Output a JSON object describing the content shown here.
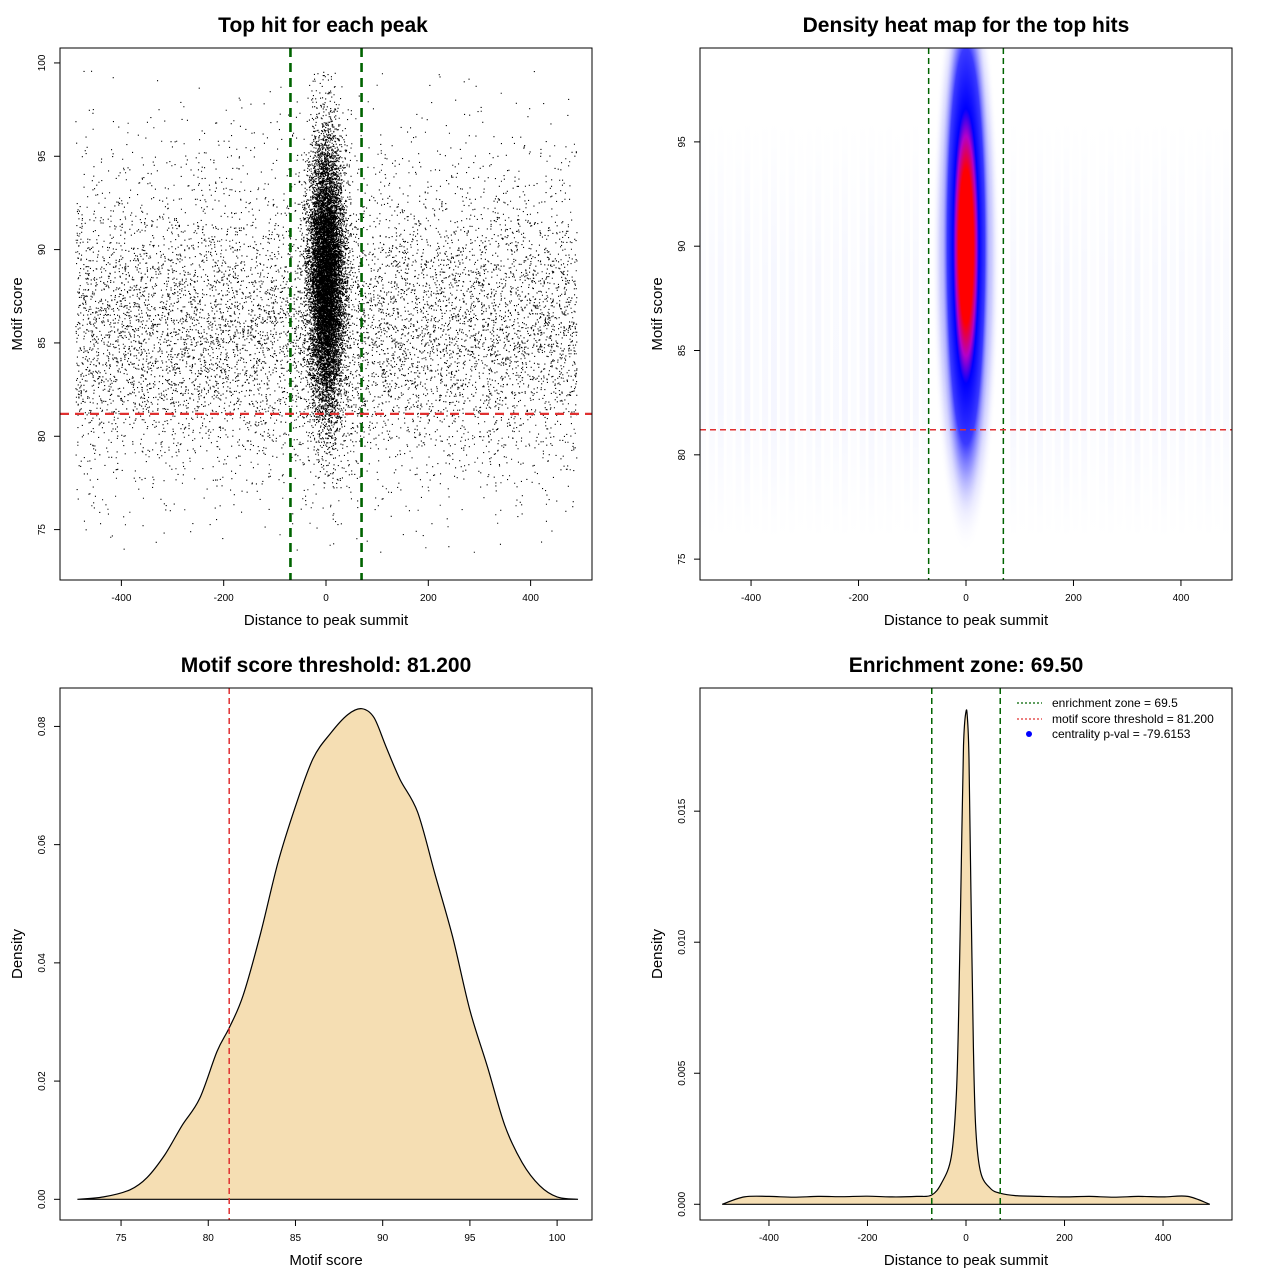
{
  "chart_data": [
    {
      "type": "scatter",
      "title": "Top hit for each peak",
      "xlabel": "Distance to peak summit",
      "ylabel": "Motif score",
      "xlim": [
        -520,
        520
      ],
      "ylim": [
        72.3,
        100.8
      ],
      "xticks": [
        -400,
        -200,
        0,
        200,
        400
      ],
      "yticks": [
        75,
        80,
        85,
        90,
        95,
        100
      ],
      "vlines": [
        -69.5,
        69.5
      ],
      "hline": 81.2,
      "colors": {
        "points": "#000000",
        "vline": "#006400",
        "hline": "#e03030"
      },
      "point_cloud": {
        "x_range": [
          -490,
          490
        ],
        "central_x_sd": 17,
        "score_center": 88.5,
        "score_range": [
          73.8,
          99.6
        ]
      }
    },
    {
      "type": "heatmap",
      "title": "Density heat map for the top hits",
      "xlabel": "Distance to peak summit",
      "ylabel": "Motif score",
      "xlim": [
        -495,
        495
      ],
      "ylim": [
        74,
        99.5
      ],
      "xticks": [
        -400,
        -200,
        0,
        200,
        400
      ],
      "yticks": [
        75,
        80,
        85,
        90,
        95
      ],
      "vlines": [
        -69.5,
        69.5
      ],
      "hline": 81.2,
      "colors": {
        "low": "#ffffff",
        "mid": "#0000ff",
        "high": "#ff0000",
        "vline": "#006400",
        "hline": "#e03030"
      },
      "peak": {
        "x": 0,
        "y": 90
      }
    },
    {
      "type": "area",
      "title": "Motif score threshold: 81.200",
      "xlabel": "Motif score",
      "ylabel": "Density",
      "xlim": [
        71.5,
        102
      ],
      "ylim": [
        -0.0035,
        0.0865
      ],
      "xticks": [
        75,
        80,
        85,
        90,
        95,
        100
      ],
      "yticks": [
        0.0,
        0.02,
        0.04,
        0.06,
        0.08
      ],
      "ytick_labels": [
        "0.00",
        "0.02",
        "0.04",
        "0.06",
        "0.08"
      ],
      "vline": 81.2,
      "colors": {
        "fill": "#f5deb3",
        "line": "#000000",
        "vline": "#e03030"
      },
      "x": [
        72.5,
        74,
        75.5,
        76.5,
        77.5,
        78.5,
        79.5,
        80.5,
        81.2,
        82,
        83,
        84,
        85,
        86,
        87,
        88,
        88.8,
        89.5,
        90.2,
        91,
        92,
        93,
        94,
        95,
        96,
        97,
        98,
        99,
        100,
        101.2
      ],
      "y": [
        0.0,
        0.0004,
        0.0016,
        0.0037,
        0.0075,
        0.0125,
        0.017,
        0.025,
        0.029,
        0.0345,
        0.045,
        0.057,
        0.0665,
        0.0745,
        0.0788,
        0.082,
        0.083,
        0.0815,
        0.0765,
        0.071,
        0.0655,
        0.055,
        0.0445,
        0.032,
        0.0225,
        0.0125,
        0.0062,
        0.0023,
        0.0004,
        0.0
      ]
    },
    {
      "type": "area",
      "title": "Enrichment zone: 69.50",
      "xlabel": "Distance to peak summit",
      "ylabel": "Density",
      "xlim": [
        -540,
        540
      ],
      "ylim": [
        -0.0006,
        0.0197
      ],
      "xticks": [
        -400,
        -200,
        0,
        200,
        400
      ],
      "yticks": [
        0.0,
        0.005,
        0.01,
        0.015
      ],
      "ytick_labels": [
        "0.000",
        "0.005",
        "0.010",
        "0.015"
      ],
      "vlines": [
        -69.5,
        69.5
      ],
      "colors": {
        "fill": "#f5deb3",
        "line": "#000000",
        "vline": "#006400",
        "legend_zone": "#006400",
        "legend_threshold": "#e03030",
        "legend_point": "#0000ff"
      },
      "x": [
        -495,
        -450,
        -400,
        -350,
        -300,
        -250,
        -200,
        -150,
        -100,
        -70,
        -50,
        -30,
        -20,
        -15,
        -10,
        -5,
        0,
        3,
        6,
        10,
        15,
        20,
        30,
        50,
        70,
        100,
        150,
        200,
        250,
        300,
        350,
        400,
        450,
        495
      ],
      "y": [
        0.0,
        0.00028,
        0.0003,
        0.00027,
        0.0003,
        0.00029,
        0.00031,
        0.00028,
        0.0003,
        0.00035,
        0.0008,
        0.0018,
        0.004,
        0.0072,
        0.0125,
        0.0175,
        0.0188,
        0.0185,
        0.017,
        0.012,
        0.006,
        0.0028,
        0.0012,
        0.0006,
        0.00042,
        0.00033,
        0.0003,
        0.00028,
        0.0003,
        0.00027,
        0.0003,
        0.00028,
        0.0003,
        0.0
      ],
      "legend": [
        {
          "label": "enrichment zone = 69.5",
          "symbol": "dotted-line",
          "color": "#006400"
        },
        {
          "label": "motif score threshold = 81.200",
          "symbol": "dotted-line",
          "color": "#e03030"
        },
        {
          "label": "centrality p-val = -79.6153",
          "symbol": "point",
          "color": "#0000ff"
        }
      ]
    }
  ]
}
